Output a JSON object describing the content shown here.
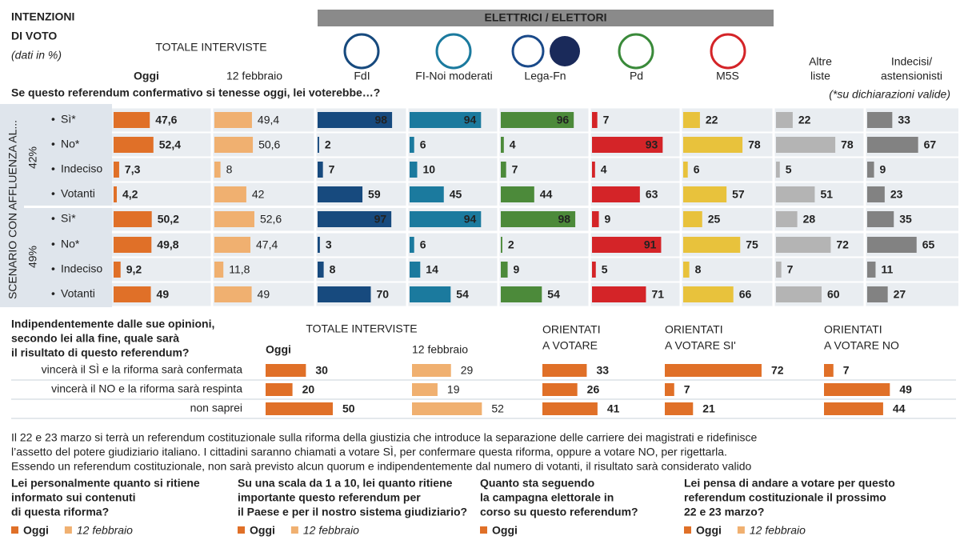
{
  "header": {
    "title": [
      "INTENZIONI",
      "DI VOTO"
    ],
    "subtitle": "(dati in %)",
    "total_label": "TOTALE INTERVISTE",
    "voters_label": "ELETTRICI / ELETTORI"
  },
  "chart_data": [
    {
      "type": "bar",
      "title": "Se questo referendum confermativo si tenesse oggi, lei voterebbe…?",
      "note": "(*su dichiarazioni valide)",
      "side_label": "SCENARIO CON AFFLUENZA AL...",
      "scenarios": [
        "42%",
        "49%"
      ],
      "categories": [
        "Sì*",
        "No*",
        "Indeciso",
        "Votanti",
        "Sì*",
        "No*",
        "Indeciso",
        "Votanti"
      ],
      "series": [
        {
          "name": "Oggi",
          "color": "#e07028",
          "values": [
            47.6,
            52.4,
            7.3,
            4.2,
            50.2,
            49.8,
            9.2,
            49
          ],
          "value_labels": [
            "47,6",
            "52,4",
            "7,3",
            "4,2",
            "50,2",
            "49,8",
            "9,2",
            "49"
          ]
        },
        {
          "name": "12 febbraio",
          "color": "#f0b070",
          "values": [
            49.4,
            50.6,
            8,
            42,
            52.6,
            47.4,
            11.8,
            49
          ],
          "value_labels": [
            "49,4",
            "50,6",
            "8",
            "42",
            "52,6",
            "47,4",
            "11,8",
            "49"
          ]
        },
        {
          "name": "FdI",
          "color": "#174a7e",
          "values": [
            98,
            2,
            7,
            59,
            97,
            3,
            8,
            70
          ]
        },
        {
          "name": "FI-Noi moderati",
          "color": "#1b7a9e",
          "values": [
            94,
            6,
            10,
            45,
            94,
            6,
            14,
            54
          ]
        },
        {
          "name": "Lega-Fn",
          "color": "#4c8a3a",
          "values": [
            96,
            4,
            7,
            44,
            98,
            2,
            9,
            54
          ]
        },
        {
          "name": "Pd",
          "color": "#d42428",
          "values": [
            7,
            93,
            4,
            63,
            9,
            91,
            5,
            71
          ]
        },
        {
          "name": "M5S",
          "color": "#e8c23c",
          "values": [
            22,
            78,
            6,
            57,
            25,
            75,
            8,
            66
          ]
        },
        {
          "name": [
            "Altre",
            "liste"
          ],
          "color": "#b4b4b4",
          "values": [
            22,
            78,
            5,
            51,
            28,
            72,
            7,
            60
          ]
        },
        {
          "name": [
            "Indecisi/",
            "astensionisti"
          ],
          "color": "#828282",
          "values": [
            33,
            67,
            9,
            23,
            35,
            65,
            11,
            27
          ]
        }
      ]
    },
    {
      "type": "bar",
      "title": [
        "Indipendentemente dalle sue opinioni,",
        "secondo lei alla fine, quale sarà",
        "il risultato di questo referendum?"
      ],
      "total_label": "TOTALE INTERVISTE",
      "categories": [
        "vincerà il SÌ e la riforma sarà confermata",
        "vincerà il NO e la riforma sarà respinta",
        "non saprei"
      ],
      "series": [
        {
          "name": "Oggi",
          "color": "#e07028",
          "values": [
            30,
            20,
            50
          ]
        },
        {
          "name": "12 febbraio",
          "color": "#f0b070",
          "values": [
            29,
            19,
            52
          ]
        },
        {
          "name": [
            "ORIENTATI",
            "A VOTARE"
          ],
          "color": "#e07028",
          "values": [
            33,
            26,
            41
          ]
        },
        {
          "name": [
            "ORIENTATI",
            "A VOTARE SI'"
          ],
          "color": "#e07028",
          "values": [
            72,
            7,
            21
          ]
        },
        {
          "name": [
            "ORIENTATI",
            "A VOTARE NO"
          ],
          "color": "#e07028",
          "values": [
            7,
            49,
            44
          ]
        }
      ]
    }
  ],
  "footer": {
    "text": [
      "Il 22 e 23 marzo si terrà un referendum costituzionale sulla riforma della giustizia che introduce la separazione delle carriere dei magistrati e ridefinisce",
      "l’assetto del potere giudiziario italiano. I cittadini saranno chiamati a votare SÌ, per confermare questa riforma, oppure a votare NO, per rigettarla.",
      "Essendo un referendum costituzionale, non sarà previsto alcun quorum e indipendentemente dal numero di votanti, il risultato sarà considerato valido"
    ],
    "questions": [
      {
        "title": [
          "Lei personalmente quanto si ritiene",
          "informato sui contenuti",
          "di questa riforma?"
        ],
        "legend": [
          "Oggi",
          "12 febbraio"
        ]
      },
      {
        "title": [
          "Su una scala da 1 a 10, lei quanto ritiene",
          "importante questo referendum per",
          "il Paese e per il nostro sistema giudiziario?"
        ],
        "legend": [
          "Oggi",
          "12 febbraio"
        ]
      },
      {
        "title": [
          "Quanto sta seguendo",
          "la campagna elettorale in",
          "corso su questo referendum?"
        ],
        "legend": [
          "Oggi"
        ]
      },
      {
        "title": [
          "Lei pensa di andare a votare per questo",
          "referendum costituzionale il prossimo",
          "22 e 23 marzo?"
        ],
        "legend": [
          "Oggi",
          "12 febbraio"
        ]
      }
    ]
  }
}
